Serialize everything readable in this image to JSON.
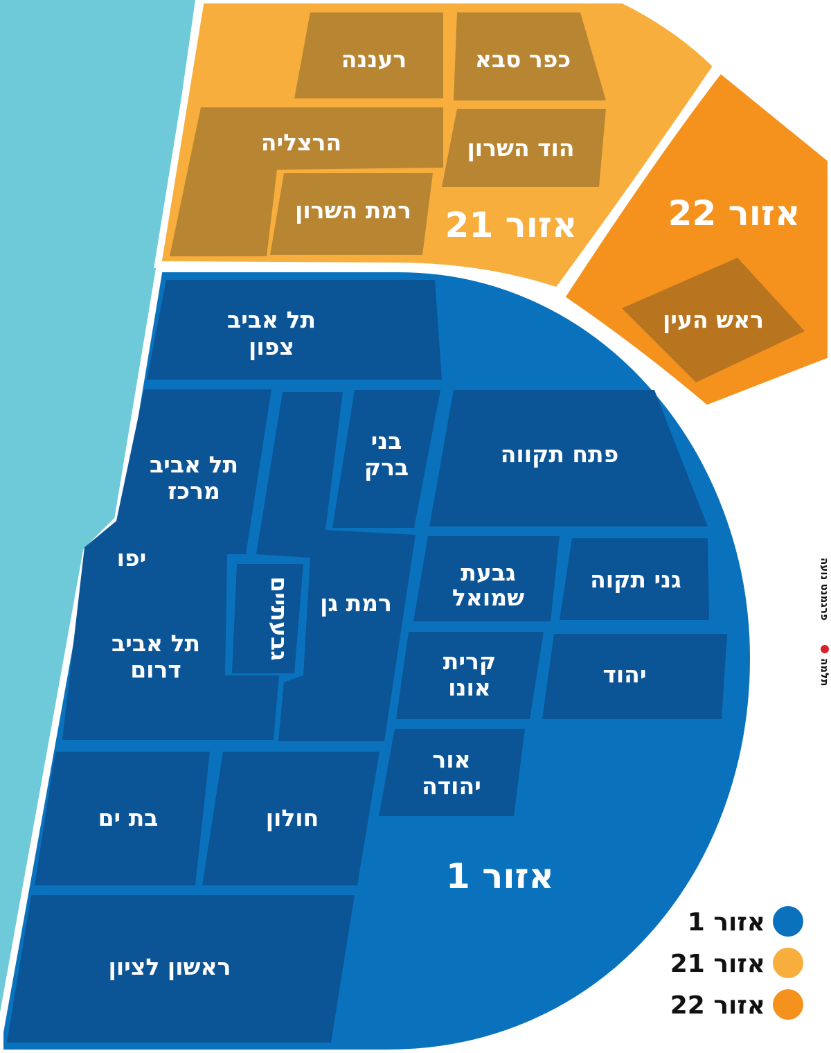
{
  "colors": {
    "sea": "#6ecad9",
    "zone1_bg": "#0a72bd",
    "zone1_city": "#0b5496",
    "zone21_bg": "#f7ae3d",
    "zone21_city": "#b88532",
    "zone22_bg": "#f5921e",
    "zone22_city": "#b8741f",
    "border": "#ffffff"
  },
  "zones": {
    "z1": {
      "label": "אזור 1",
      "color": "#0a72bd"
    },
    "z21": {
      "label": "אזור 21",
      "color": "#f7ae3d"
    },
    "z22": {
      "label": "אזור 22",
      "color": "#f5921e"
    }
  },
  "cities": {
    "kfar_saba": "כפר סבא",
    "raanana": "רעננה",
    "herzliya": "הרצליה",
    "hod_hasharon": "הוד השרון",
    "ramat_hasharon": "רמת השרון",
    "rosh_haayin": "ראש העין",
    "ta_north_1": "תל אביב",
    "ta_north_2": "צפון",
    "ta_center_1": "תל אביב",
    "ta_center_2": "מרכז",
    "yafo": "יפו",
    "ta_south_1": "תל אביב",
    "ta_south_2": "דרום",
    "givatayim": "גבעתיים",
    "bnei_brak_1": "בני",
    "bnei_brak_2": "ברק",
    "petah_tikva": "פתח תקווה",
    "ramat_gan": "רמת גן",
    "givat_shmuel_1": "גבעת",
    "givat_shmuel_2": "שמואל",
    "ganei_tikva": "גני תקוה",
    "kiryat_ono_1": "קרית",
    "kiryat_ono_2": "אונו",
    "yehud": "יהוד",
    "or_yehuda_1": "אור",
    "or_yehuda_2": "יהודה",
    "bat_yam": "בת ים",
    "holon": "חולון",
    "rishon": "ראשון לציון"
  },
  "legend": [
    {
      "label": "אזור 1",
      "color": "#0a72bd"
    },
    {
      "label": "אזור 21",
      "color": "#f7ae3d"
    },
    {
      "label": "אזור 22",
      "color": "#f5921e"
    }
  ],
  "credit": {
    "source": "תלמה",
    "text": "פרגמנט נועה"
  }
}
